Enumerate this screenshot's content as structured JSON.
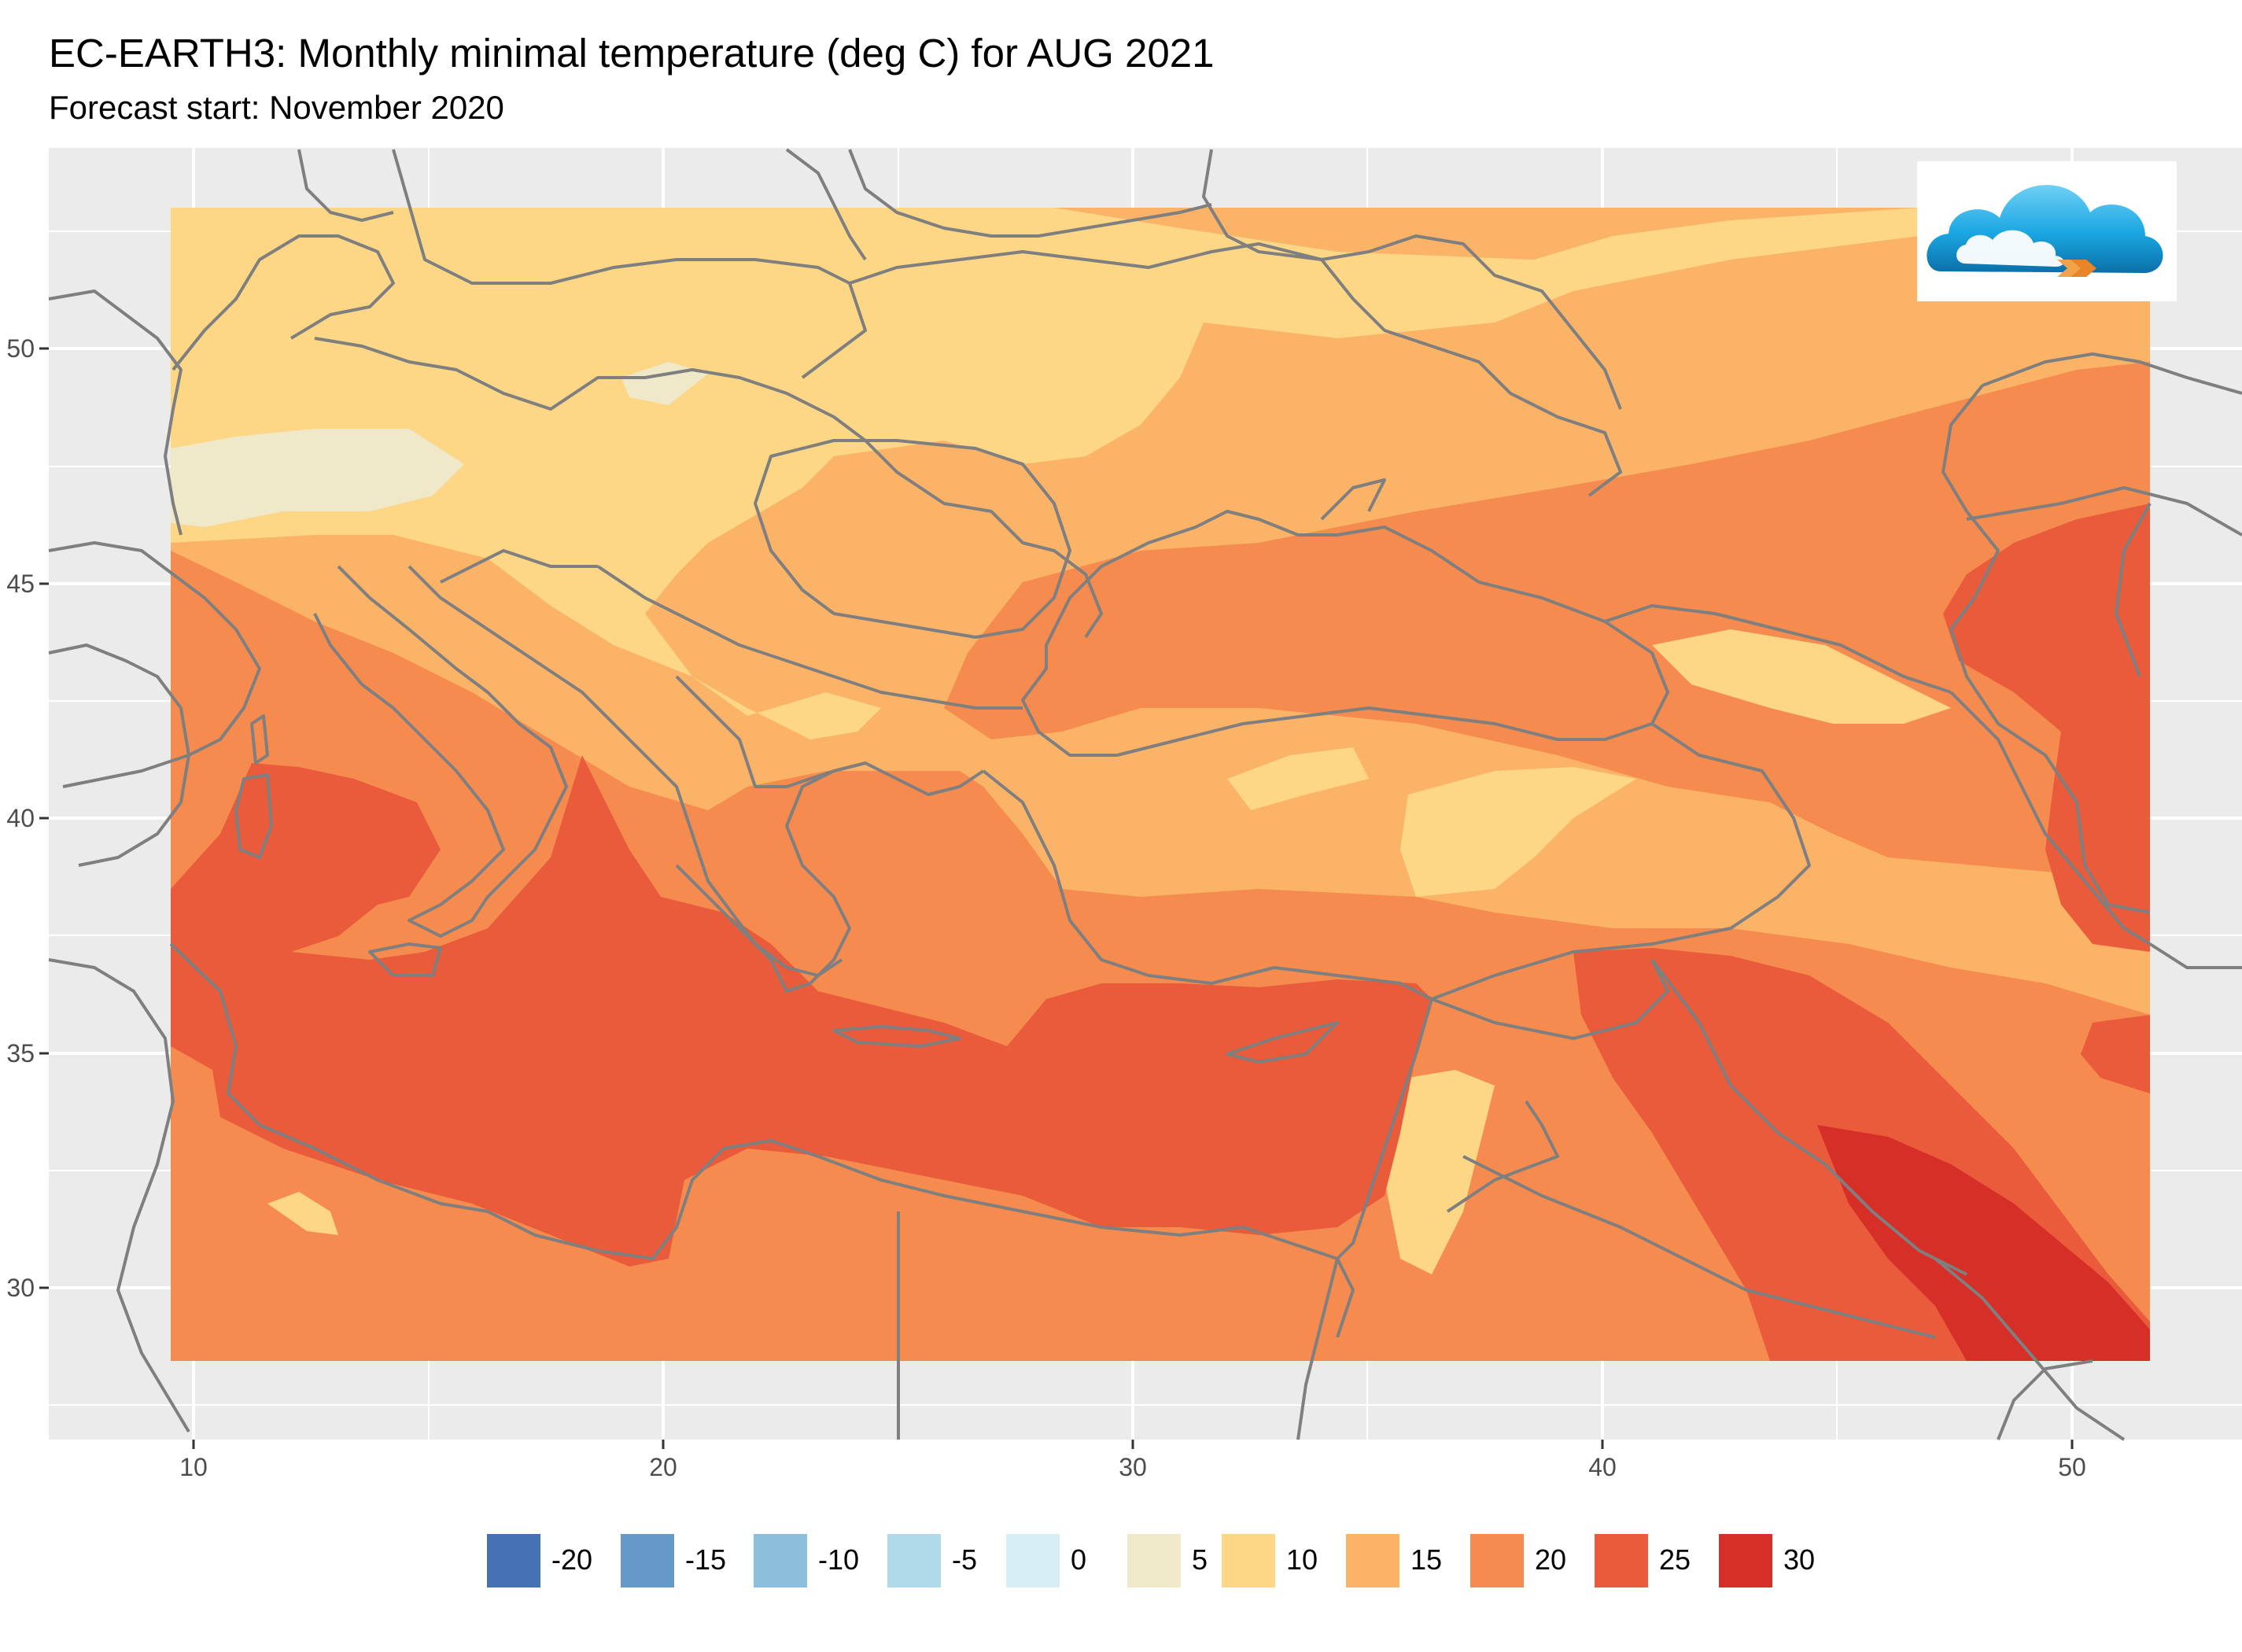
{
  "title": "EC-EARTH3: Monthly minimal temperature (deg C) for AUG 2021",
  "subtitle": "Forecast start: November 2020",
  "axes": {
    "x_ticks": [
      "10",
      "20",
      "30",
      "40",
      "50"
    ],
    "y_ticks": [
      "50",
      "45",
      "40",
      "35",
      "30"
    ]
  },
  "legend": {
    "items": [
      {
        "label": "-20",
        "color": "#4472b4"
      },
      {
        "label": "-15",
        "color": "#6699c8"
      },
      {
        "label": "-10",
        "color": "#8dbfdd"
      },
      {
        "label": "-5",
        "color": "#b0dae9"
      },
      {
        "label": "0",
        "color": "#d6eef4"
      },
      {
        "label": "5",
        "color": "#efe9c9"
      },
      {
        "label": "10",
        "color": "#fdd686"
      },
      {
        "label": "15",
        "color": "#fbb368"
      },
      {
        "label": "20",
        "color": "#f68b4f"
      },
      {
        "label": "25",
        "color": "#e95b3b"
      },
      {
        "label": "30",
        "color": "#d52f28"
      }
    ]
  },
  "logo": {
    "icon": "cloud-logo-icon"
  }
}
